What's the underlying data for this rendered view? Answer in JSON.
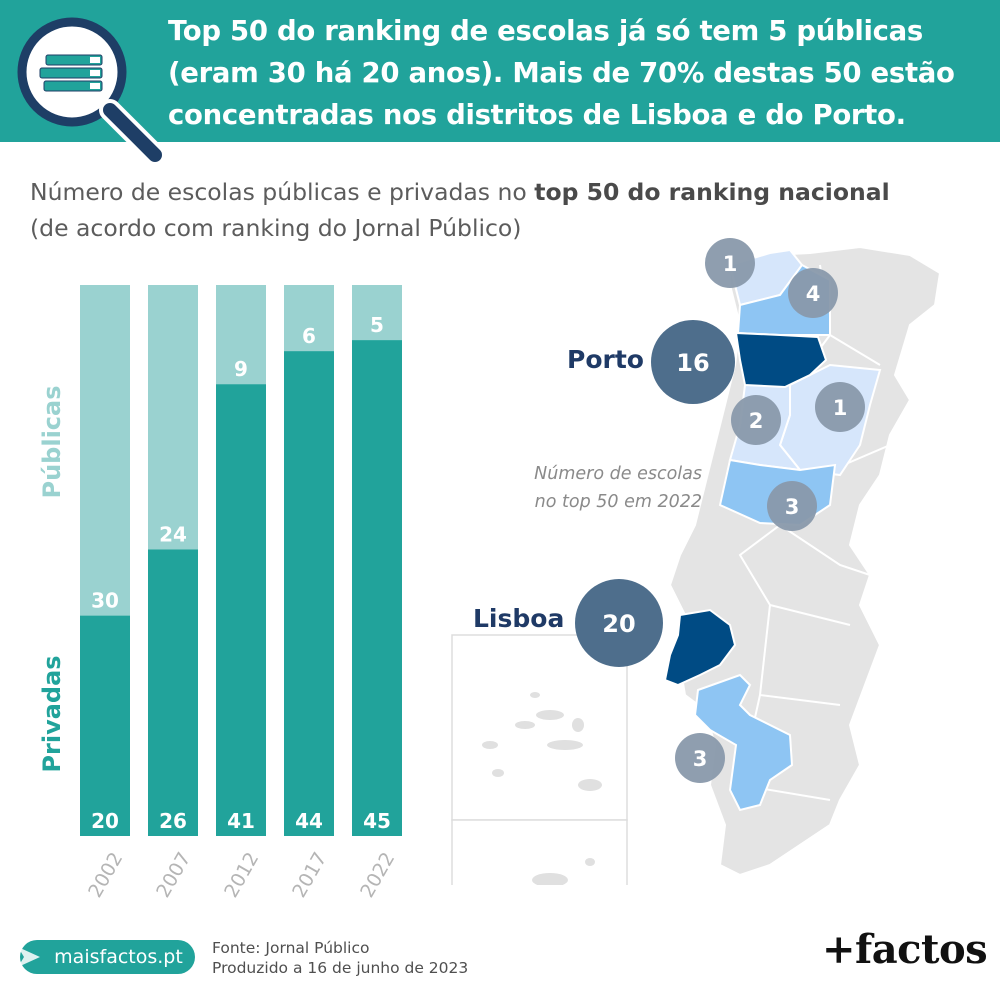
{
  "header": {
    "title_lines": [
      "Top 50 do ranking de escolas já só tem 5 públicas",
      "(eram 30 há 20 anos). Mais de 70% destas 50 estão",
      "concentradas nos distritos de Lisboa e do Porto."
    ],
    "icon": "magnifier-books-icon",
    "colors": {
      "banner": "#21a39b"
    }
  },
  "subtitle": {
    "part1": "Número de escolas públicas e privadas no ",
    "bold": "top 50 do ranking nacional",
    "line2": "(de acordo com ranking do Jornal Público)"
  },
  "chart_data": {
    "type": "bar",
    "stacked": true,
    "categories": [
      "2002",
      "2007",
      "2012",
      "2017",
      "2022"
    ],
    "series": [
      {
        "name": "Privadas",
        "values": [
          20,
          26,
          41,
          44,
          45
        ],
        "color": "#21a39b"
      },
      {
        "name": "Públicas",
        "values": [
          30,
          24,
          9,
          6,
          5
        ],
        "color": "#9ad2d0"
      }
    ],
    "ylim": [
      0,
      50
    ],
    "grid": false,
    "legend": "rotated labels left of bars"
  },
  "map": {
    "note_lines": [
      "Número de escolas",
      "no top 50 em 2022"
    ],
    "highlight_labels": {
      "porto": "Porto",
      "lisboa": "Lisboa"
    },
    "bubbles": [
      {
        "district": "Viana do Castelo",
        "count": "1"
      },
      {
        "district": "Braga",
        "count": "4"
      },
      {
        "district": "Porto",
        "count": "16"
      },
      {
        "district": "Aveiro",
        "count": "2"
      },
      {
        "district": "Viseu",
        "count": "1"
      },
      {
        "district": "Coimbra",
        "count": "3"
      },
      {
        "district": "Lisboa",
        "count": "20"
      },
      {
        "district": "Setúbal",
        "count": "3"
      }
    ],
    "colors": {
      "dark": "#004b84",
      "mid": "#8ec5f3",
      "light": "#d6e6fb",
      "base": "#e4e4e4",
      "bubble_big": "#4e6e8c",
      "bubble_small": "#8999ab"
    }
  },
  "footer": {
    "site": "maisfactos.pt",
    "source_lines": [
      "Fonte: Jornal Público",
      "Produzido a 16 de junho de 2023"
    ],
    "brand": "+factos"
  }
}
